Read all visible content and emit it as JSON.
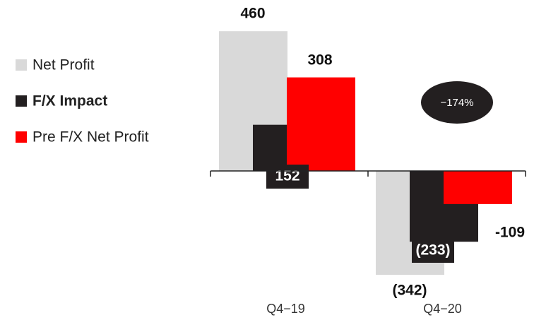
{
  "chart_data": {
    "type": "bar",
    "categories": [
      "Q4−19",
      "Q4−20"
    ],
    "series": [
      {
        "name": "Net Profit",
        "color": "#d9d9d9",
        "values": [
          460,
          -342
        ],
        "value_labels": [
          "460",
          "(342)"
        ]
      },
      {
        "name": "F/X Impact",
        "color": "#231f20",
        "values": [
          152,
          -233
        ],
        "value_labels": [
          "152",
          "(233)"
        ]
      },
      {
        "name": "Pre F/X Net Profit",
        "color": "#ff0000",
        "values": [
          308,
          -109
        ],
        "value_labels": [
          "308",
          "-109"
        ]
      }
    ],
    "annotation": "−174%",
    "ylim": [
      -400,
      500
    ]
  }
}
